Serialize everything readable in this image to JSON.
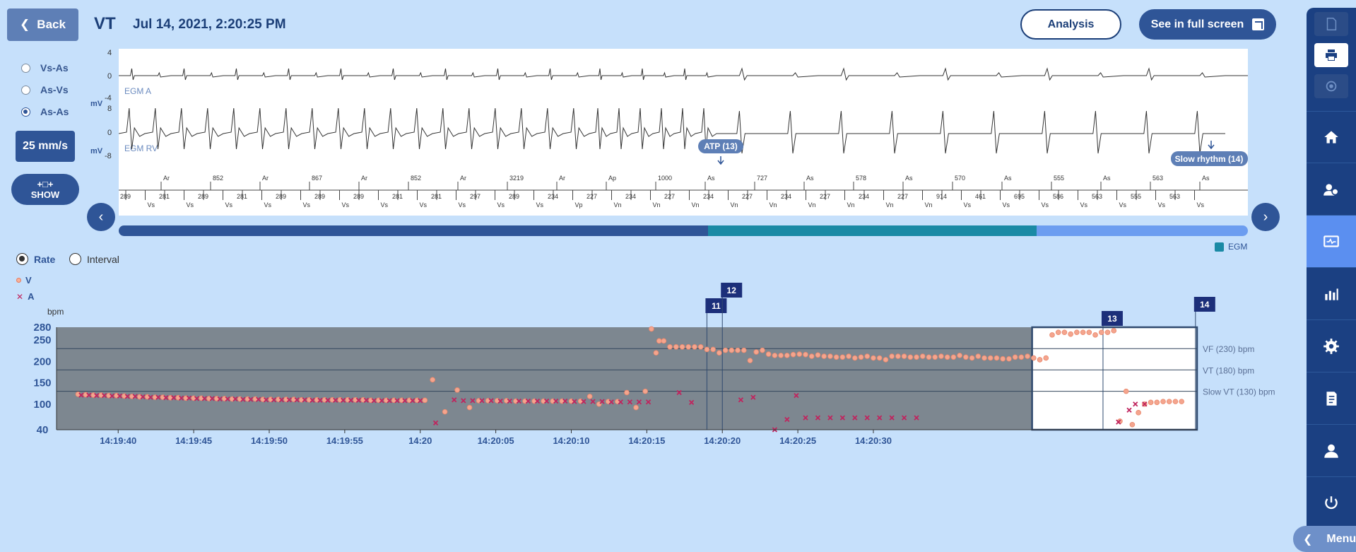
{
  "header": {
    "back_label": "Back",
    "title": "VT",
    "datetime": "Jul 14, 2021, 2:20:25 PM",
    "analysis_label": "Analysis",
    "fullscreen_label": "See in full screen"
  },
  "left_controls": {
    "interval_options": [
      {
        "label": "Vs-As",
        "selected": false
      },
      {
        "label": "As-Vs",
        "selected": false
      },
      {
        "label": "As-As",
        "selected": true
      }
    ],
    "speed_label": "25 mm/s",
    "show_label": "SHOW",
    "show_icon": "+□+"
  },
  "egm": {
    "unit": "mV",
    "channel_a": {
      "name": "EGM A",
      "ticks": [
        "4",
        "0",
        "-4"
      ]
    },
    "channel_rv": {
      "name": "EGM RV",
      "ticks": [
        "8",
        "0",
        "-8"
      ]
    },
    "events": [
      {
        "label": "ATP (13)"
      },
      {
        "label": "Slow rhythm (14)"
      }
    ],
    "marker_top": [
      "Ar",
      "852",
      "Ar",
      "867",
      "Ar",
      "852",
      "Ar",
      "3219",
      "Ar",
      "Ap",
      "1000",
      "As",
      "727",
      "As",
      "578",
      "As",
      "570",
      "As",
      "555",
      "As",
      "563",
      "As"
    ],
    "marker_bottom": [
      "289",
      "Vs",
      "281",
      "Vs",
      "289",
      "Vs",
      "281",
      "Vs",
      "289",
      "Vs",
      "289",
      "Vs",
      "289",
      "Vs",
      "281",
      "Vs",
      "281",
      "Vs",
      "297",
      "Vs",
      "289",
      "Vs",
      "234",
      "Vp",
      "227",
      "Vn",
      "234",
      "Vn",
      "227",
      "Vn",
      "234",
      "Vn",
      "227",
      "Vn",
      "234",
      "Vn",
      "227",
      "Vn",
      "234",
      "Vn",
      "227",
      "Vn",
      "914",
      "Vs",
      "461",
      "Vs",
      "695",
      "Vs",
      "586",
      "Vs",
      "563",
      "Vs",
      "555",
      "Vs",
      "563",
      "Vs"
    ],
    "legend": "EGM"
  },
  "chart_mode": {
    "options": [
      {
        "label": "Rate",
        "selected": true
      },
      {
        "label": "Interval",
        "selected": false
      }
    ]
  },
  "chart_legend": {
    "v_label": "V",
    "a_label": "A"
  },
  "chart_data": {
    "type": "scatter",
    "ylabel": "bpm",
    "y_ticks": [
      40,
      100,
      150,
      200,
      250,
      280
    ],
    "x_ticks": [
      "14:19:40",
      "14:19:45",
      "14:19:50",
      "14:19:55",
      "14:20",
      "14:20:05",
      "14:20:10",
      "14:20:15",
      "14:20:20",
      "14:20:25",
      "14:20:30"
    ],
    "thresholds": [
      {
        "label": "VF (230) bpm",
        "value": 230
      },
      {
        "label": "VT (180) bpm",
        "value": 180
      },
      {
        "label": "Slow VT (130) bpm",
        "value": 130
      }
    ],
    "episode_markers": [
      "11",
      "12",
      "13",
      "14"
    ],
    "colors": {
      "v": "#f4a58e",
      "a": "#c0245e",
      "shade": "#7d8790"
    },
    "series": [
      {
        "name": "V",
        "points": [
          [
            -2.6,
            123
          ],
          [
            -2.1,
            122
          ],
          [
            -1.6,
            121
          ],
          [
            -1.1,
            121
          ],
          [
            -0.6,
            120
          ],
          [
            -0.1,
            120
          ],
          [
            0.4,
            119
          ],
          [
            0.9,
            118
          ],
          [
            1.4,
            117
          ],
          [
            1.9,
            117
          ],
          [
            2.4,
            116
          ],
          [
            2.9,
            116
          ],
          [
            3.4,
            115
          ],
          [
            3.9,
            115
          ],
          [
            4.4,
            114
          ],
          [
            4.9,
            114
          ],
          [
            5.4,
            114
          ],
          [
            5.9,
            113
          ],
          [
            6.4,
            113
          ],
          [
            6.9,
            113
          ],
          [
            7.4,
            112
          ],
          [
            7.9,
            112
          ],
          [
            8.4,
            112
          ],
          [
            8.9,
            112
          ],
          [
            9.4,
            111
          ],
          [
            9.9,
            111
          ],
          [
            10.4,
            111
          ],
          [
            10.9,
            111
          ],
          [
            11.4,
            111
          ],
          [
            11.9,
            110
          ],
          [
            12.4,
            110
          ],
          [
            12.9,
            110
          ],
          [
            13.4,
            110
          ],
          [
            13.9,
            110
          ],
          [
            14.4,
            110
          ],
          [
            14.9,
            110
          ],
          [
            15.4,
            110
          ],
          [
            15.9,
            110
          ],
          [
            16.4,
            109
          ],
          [
            16.9,
            109
          ],
          [
            17.4,
            109
          ],
          [
            17.9,
            109
          ],
          [
            18.4,
            109
          ],
          [
            18.9,
            109
          ],
          [
            19.4,
            109
          ],
          [
            19.9,
            109
          ],
          [
            20.4,
            157
          ],
          [
            21.2,
            82
          ],
          [
            22.0,
            133
          ],
          [
            22.8,
            92
          ],
          [
            23.4,
            108
          ],
          [
            24.0,
            108
          ],
          [
            24.6,
            108
          ],
          [
            25.2,
            108
          ],
          [
            25.8,
            107
          ],
          [
            26.4,
            107
          ],
          [
            27.0,
            107
          ],
          [
            27.6,
            107
          ],
          [
            28.2,
            107
          ],
          [
            28.8,
            107
          ],
          [
            29.4,
            107
          ],
          [
            30.0,
            107
          ],
          [
            30.6,
            118
          ],
          [
            31.2,
            100
          ],
          [
            31.8,
            106
          ],
          [
            32.4,
            106
          ],
          [
            33.0,
            127
          ],
          [
            33.6,
            92
          ],
          [
            34.2,
            130
          ],
          [
            34.6,
            276
          ],
          [
            34.9,
            220
          ],
          [
            35.1,
            248
          ],
          [
            35.4,
            248
          ],
          [
            35.8,
            234
          ],
          [
            36.2,
            234
          ],
          [
            36.6,
            234
          ],
          [
            37.0,
            234
          ],
          [
            37.4,
            234
          ],
          [
            37.8,
            234
          ],
          [
            38.2,
            228
          ],
          [
            38.6,
            228
          ],
          [
            39.0,
            220
          ],
          [
            39.4,
            226
          ],
          [
            39.8,
            226
          ],
          [
            40.2,
            226
          ],
          [
            40.6,
            226
          ],
          [
            41.0,
            202
          ],
          [
            41.4,
            222
          ],
          [
            41.8,
            226
          ],
          [
            42.2,
            217
          ],
          [
            42.6,
            214
          ],
          [
            43.0,
            214
          ],
          [
            43.4,
            214
          ],
          [
            43.8,
            216
          ],
          [
            44.2,
            217
          ],
          [
            44.6,
            216
          ],
          [
            45.0,
            212
          ],
          [
            45.4,
            215
          ],
          [
            45.8,
            212
          ],
          [
            46.2,
            212
          ],
          [
            46.6,
            210
          ],
          [
            47.0,
            210
          ],
          [
            47.4,
            212
          ],
          [
            47.8,
            208
          ],
          [
            48.2,
            210
          ],
          [
            48.6,
            212
          ],
          [
            49.0,
            208
          ],
          [
            49.4,
            208
          ],
          [
            49.8,
            204
          ],
          [
            50.2,
            212
          ],
          [
            50.6,
            212
          ],
          [
            51.0,
            212
          ],
          [
            51.4,
            210
          ],
          [
            51.8,
            210
          ],
          [
            52.2,
            212
          ],
          [
            52.6,
            210
          ],
          [
            53.0,
            210
          ],
          [
            53.4,
            212
          ],
          [
            53.8,
            210
          ],
          [
            54.2,
            210
          ],
          [
            54.6,
            214
          ],
          [
            55.0,
            210
          ],
          [
            55.4,
            208
          ],
          [
            55.8,
            212
          ],
          [
            56.2,
            208
          ],
          [
            56.6,
            208
          ],
          [
            57.0,
            208
          ],
          [
            57.4,
            206
          ],
          [
            57.8,
            206
          ],
          [
            58.2,
            210
          ],
          [
            58.6,
            210
          ],
          [
            59.0,
            212
          ],
          [
            59.4,
            208
          ],
          [
            59.8,
            204
          ],
          [
            60.2,
            208
          ],
          [
            60.6,
            262
          ],
          [
            61.0,
            268
          ],
          [
            61.4,
            268
          ],
          [
            61.8,
            264
          ],
          [
            62.2,
            268
          ],
          [
            62.6,
            268
          ],
          [
            63.0,
            268
          ],
          [
            63.4,
            262
          ],
          [
            63.8,
            268
          ],
          [
            64.2,
            268
          ],
          [
            64.6,
            272
          ],
          [
            65.0,
            60
          ],
          [
            65.4,
            130
          ],
          [
            65.8,
            52
          ],
          [
            66.2,
            80
          ],
          [
            66.6,
            100
          ],
          [
            67.0,
            104
          ],
          [
            67.4,
            104
          ],
          [
            67.8,
            106
          ],
          [
            68.2,
            106
          ],
          [
            68.6,
            106
          ],
          [
            69.0,
            106
          ]
        ]
      },
      {
        "name": "A",
        "points": [
          [
            -2.4,
            121
          ],
          [
            -1.9,
            121
          ],
          [
            -1.4,
            120
          ],
          [
            -0.9,
            120
          ],
          [
            -0.4,
            119
          ],
          [
            0.1,
            119
          ],
          [
            0.6,
            118
          ],
          [
            1.1,
            118
          ],
          [
            1.6,
            117
          ],
          [
            2.1,
            116
          ],
          [
            2.6,
            116
          ],
          [
            3.1,
            115
          ],
          [
            3.6,
            115
          ],
          [
            4.1,
            114
          ],
          [
            4.6,
            114
          ],
          [
            5.1,
            113
          ],
          [
            5.6,
            113
          ],
          [
            6.1,
            113
          ],
          [
            6.6,
            112
          ],
          [
            7.1,
            112
          ],
          [
            7.6,
            112
          ],
          [
            8.1,
            111
          ],
          [
            8.6,
            111
          ],
          [
            9.1,
            111
          ],
          [
            9.6,
            110
          ],
          [
            10.1,
            110
          ],
          [
            10.6,
            110
          ],
          [
            11.1,
            110
          ],
          [
            11.6,
            110
          ],
          [
            12.1,
            110
          ],
          [
            12.6,
            109
          ],
          [
            13.1,
            109
          ],
          [
            13.6,
            109
          ],
          [
            14.1,
            109
          ],
          [
            14.6,
            109
          ],
          [
            15.1,
            109
          ],
          [
            15.6,
            109
          ],
          [
            16.1,
            109
          ],
          [
            16.6,
            108
          ],
          [
            17.1,
            108
          ],
          [
            17.6,
            108
          ],
          [
            18.1,
            108
          ],
          [
            18.6,
            108
          ],
          [
            19.1,
            108
          ],
          [
            19.6,
            108
          ],
          [
            20.6,
            56
          ],
          [
            21.8,
            110
          ],
          [
            22.4,
            108
          ],
          [
            23.0,
            108
          ],
          [
            23.6,
            108
          ],
          [
            24.2,
            108
          ],
          [
            24.8,
            107
          ],
          [
            25.4,
            107
          ],
          [
            26.0,
            107
          ],
          [
            26.6,
            107
          ],
          [
            27.2,
            107
          ],
          [
            27.8,
            107
          ],
          [
            28.4,
            107
          ],
          [
            29.0,
            107
          ],
          [
            29.6,
            106
          ],
          [
            30.2,
            106
          ],
          [
            30.8,
            106
          ],
          [
            31.4,
            106
          ],
          [
            32.0,
            105
          ],
          [
            32.6,
            105
          ],
          [
            33.2,
            105
          ],
          [
            33.8,
            105
          ],
          [
            34.4,
            105
          ],
          [
            36.4,
            127
          ],
          [
            37.2,
            104
          ],
          [
            40.4,
            110
          ],
          [
            41.2,
            116
          ],
          [
            42.6,
            40
          ],
          [
            43.4,
            64
          ],
          [
            44.0,
            120
          ],
          [
            44.6,
            68
          ],
          [
            45.4,
            68
          ],
          [
            46.2,
            68
          ],
          [
            47.0,
            68
          ],
          [
            47.8,
            68
          ],
          [
            48.6,
            68
          ],
          [
            49.4,
            68
          ],
          [
            50.2,
            68
          ],
          [
            51.0,
            68
          ],
          [
            51.8,
            68
          ],
          [
            64.9,
            58
          ],
          [
            65.6,
            86
          ],
          [
            66.0,
            100
          ],
          [
            66.6,
            100
          ]
        ]
      }
    ]
  },
  "sidebar": {
    "items": [
      {
        "icon": "document-icon"
      },
      {
        "icon": "printer-icon"
      },
      {
        "icon": "sync-icon"
      },
      {
        "icon": "home-icon"
      },
      {
        "icon": "users-settings-icon"
      },
      {
        "icon": "monitor-icon"
      },
      {
        "icon": "bar-chart-icon"
      },
      {
        "icon": "gear-icon"
      },
      {
        "icon": "report-icon"
      },
      {
        "icon": "user-icon"
      },
      {
        "icon": "power-icon"
      }
    ],
    "menu_label": "Menu"
  }
}
